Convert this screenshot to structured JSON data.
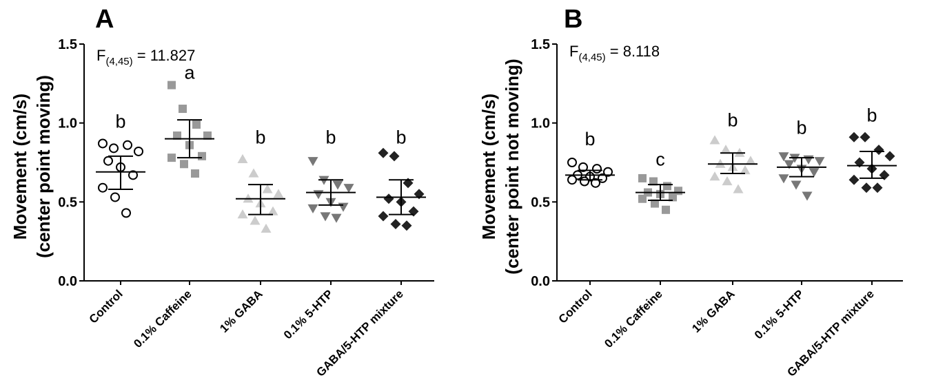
{
  "chart_data": [
    {
      "panel": "A",
      "type": "scatter",
      "ylabel_line1": "Movement (cm/s)",
      "ylabel_line2": "(center point moving)",
      "ylim": [
        0,
        1.5
      ],
      "yticks": [
        "0.0",
        "0.5",
        "1.0",
        "1.5"
      ],
      "stat_main": "F",
      "stat_sub": "(4,45)",
      "stat_value": " = 11.827",
      "categories": [
        "Control",
        "0.1% Caffeine",
        "1% GABA",
        "0.1% 5-HTP",
        "GABA/5-HTP mixture"
      ],
      "groups": [
        {
          "name": "Control",
          "marker": "circle-open",
          "color": "#000000",
          "letter": "b",
          "mean": 0.69,
          "sd_low": 0.58,
          "sd_high": 0.79,
          "letter_y": 0.97,
          "points": [
            0.87,
            0.84,
            0.86,
            0.82,
            0.76,
            0.72,
            0.67,
            0.59,
            0.53,
            0.43
          ]
        },
        {
          "name": "0.1% Caffeine",
          "marker": "square",
          "color": "#999999",
          "letter": "a",
          "mean": 0.9,
          "sd_low": 0.78,
          "sd_high": 1.02,
          "letter_y": 1.28,
          "points": [
            1.24,
            1.09,
            0.99,
            0.92,
            0.92,
            0.86,
            0.79,
            0.78,
            0.74,
            0.68
          ]
        },
        {
          "name": "1% GABA",
          "marker": "triangle-up",
          "color": "#cccccc",
          "letter": "b",
          "mean": 0.52,
          "sd_low": 0.42,
          "sd_high": 0.61,
          "letter_y": 0.87,
          "points": [
            0.77,
            0.68,
            0.58,
            0.55,
            0.52,
            0.49,
            0.44,
            0.42,
            0.38,
            0.33
          ]
        },
        {
          "name": "0.1% 5-HTP",
          "marker": "triangle-down",
          "color": "#777777",
          "letter": "b",
          "mean": 0.56,
          "sd_low": 0.48,
          "sd_high": 0.64,
          "letter_y": 0.87,
          "points": [
            0.76,
            0.64,
            0.61,
            0.59,
            0.55,
            0.5,
            0.47,
            0.46,
            0.41,
            0.4
          ]
        },
        {
          "name": "GABA/5-HTP mixture",
          "marker": "diamond",
          "color": "#222222",
          "letter": "b",
          "mean": 0.53,
          "sd_low": 0.42,
          "sd_high": 0.64,
          "letter_y": 0.87,
          "points": [
            0.81,
            0.79,
            0.62,
            0.55,
            0.52,
            0.5,
            0.44,
            0.41,
            0.36,
            0.35
          ]
        }
      ]
    },
    {
      "panel": "B",
      "type": "scatter",
      "ylabel_line1": "Movement (cm/s)",
      "ylabel_line2": "(center point not moving)",
      "ylim": [
        0,
        1.5
      ],
      "yticks": [
        "0.0",
        "0.5",
        "1.0",
        "1.5"
      ],
      "stat_main": "F",
      "stat_sub": "(4,45)",
      "stat_value": " = 8.118",
      "categories": [
        "Control",
        "0.1% Caffeine",
        "1% GABA",
        "0.1% 5-HTP",
        "GABA/5-HTP mixture"
      ],
      "groups": [
        {
          "name": "Control",
          "marker": "circle-open",
          "color": "#000000",
          "letter": "b",
          "mean": 0.67,
          "sd_low": 0.64,
          "sd_high": 0.7,
          "letter_y": 0.86,
          "points": [
            0.75,
            0.72,
            0.71,
            0.69,
            0.67,
            0.66,
            0.65,
            0.64,
            0.63,
            0.62
          ]
        },
        {
          "name": "0.1% Caffeine",
          "marker": "square",
          "color": "#999999",
          "letter": "c",
          "mean": 0.56,
          "sd_low": 0.51,
          "sd_high": 0.61,
          "letter_y": 0.73,
          "points": [
            0.65,
            0.63,
            0.6,
            0.57,
            0.56,
            0.55,
            0.53,
            0.52,
            0.49,
            0.45
          ]
        },
        {
          "name": "1% GABA",
          "marker": "triangle-up",
          "color": "#cccccc",
          "letter": "b",
          "mean": 0.74,
          "sd_low": 0.68,
          "sd_high": 0.81,
          "letter_y": 0.98,
          "points": [
            0.89,
            0.83,
            0.81,
            0.76,
            0.74,
            0.72,
            0.7,
            0.66,
            0.63,
            0.58
          ]
        },
        {
          "name": "0.1% 5-HTP",
          "marker": "triangle-down",
          "color": "#777777",
          "letter": "b",
          "mean": 0.72,
          "sd_low": 0.66,
          "sd_high": 0.78,
          "letter_y": 0.93,
          "points": [
            0.79,
            0.78,
            0.77,
            0.76,
            0.74,
            0.71,
            0.69,
            0.65,
            0.61,
            0.54
          ]
        },
        {
          "name": "GABA/5-HTP mixture",
          "marker": "diamond",
          "color": "#222222",
          "letter": "b",
          "mean": 0.73,
          "sd_low": 0.65,
          "sd_high": 0.82,
          "letter_y": 1.01,
          "points": [
            0.91,
            0.91,
            0.83,
            0.79,
            0.75,
            0.71,
            0.67,
            0.64,
            0.59,
            0.59
          ]
        }
      ]
    }
  ]
}
